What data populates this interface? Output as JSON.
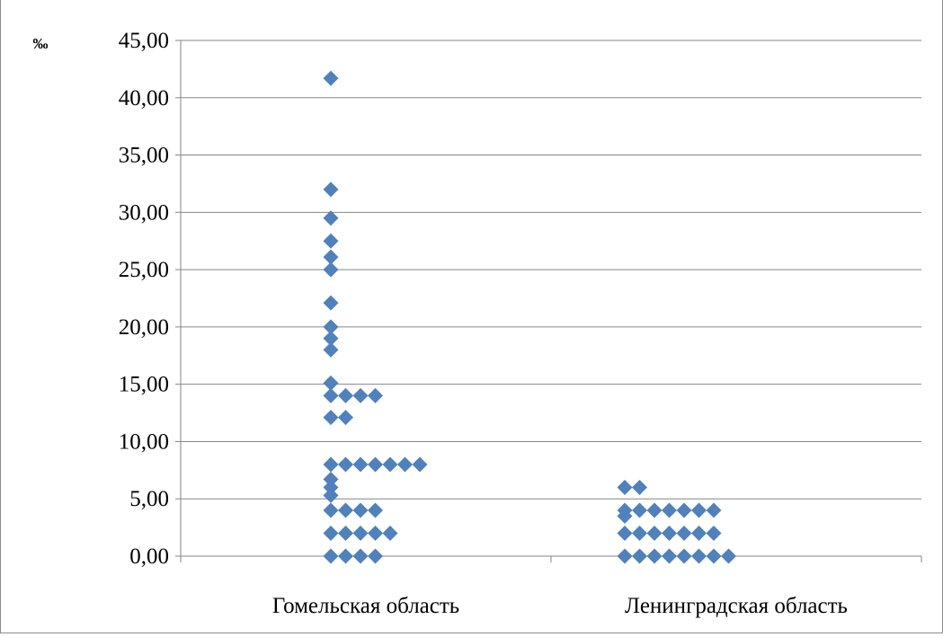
{
  "chart_data": {
    "type": "scatter",
    "ylabel": "‰",
    "categories": [
      "Гомельская область",
      "Ленинградская область"
    ],
    "y_ticks": [
      "0,00",
      "5,00",
      "10,00",
      "15,00",
      "20,00",
      "25,00",
      "30,00",
      "35,00",
      "40,00",
      "45,00"
    ],
    "ylim": [
      0,
      45
    ],
    "grid": true,
    "marker_color": "#4f81bd",
    "series": [
      {
        "category": "Гомельская область",
        "rows": [
          {
            "y": 41.7,
            "count": 1
          },
          {
            "y": 32.0,
            "count": 1
          },
          {
            "y": 29.5,
            "count": 1
          },
          {
            "y": 27.5,
            "count": 1
          },
          {
            "y": 26.1,
            "count": 1
          },
          {
            "y": 25.0,
            "count": 1
          },
          {
            "y": 22.1,
            "count": 1
          },
          {
            "y": 20.0,
            "count": 1
          },
          {
            "y": 19.0,
            "count": 1
          },
          {
            "y": 18.0,
            "count": 1
          },
          {
            "y": 15.1,
            "count": 1
          },
          {
            "y": 14.0,
            "count": 4
          },
          {
            "y": 12.1,
            "count": 2
          },
          {
            "y": 8.0,
            "count": 7
          },
          {
            "y": 6.7,
            "count": 1
          },
          {
            "y": 6.0,
            "count": 1
          },
          {
            "y": 5.3,
            "count": 1
          },
          {
            "y": 4.0,
            "count": 4
          },
          {
            "y": 2.0,
            "count": 5
          },
          {
            "y": 0.0,
            "count": 4
          }
        ]
      },
      {
        "category": "Ленинградская область",
        "rows": [
          {
            "y": 6.0,
            "count": 2
          },
          {
            "y": 4.0,
            "count": 7
          },
          {
            "y": 3.5,
            "count": 1
          },
          {
            "y": 2.0,
            "count": 7
          },
          {
            "y": 0.0,
            "count": 8
          }
        ]
      }
    ]
  }
}
